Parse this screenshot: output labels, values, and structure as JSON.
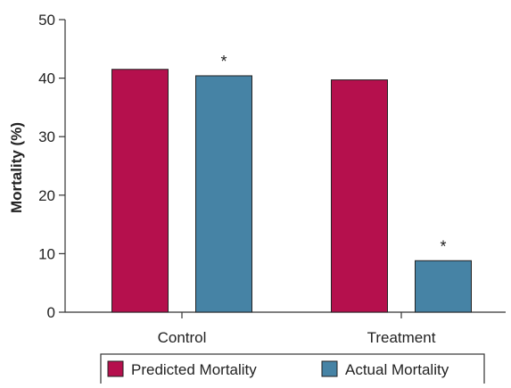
{
  "chart_data": {
    "type": "bar",
    "title": "",
    "xlabel": "",
    "ylabel": "Mortality (%)",
    "ylim": [
      0,
      50
    ],
    "yticks": [
      0,
      10,
      20,
      30,
      40,
      50
    ],
    "grid": false,
    "legend_position": "bottom",
    "categories": [
      "Control",
      "Treatment"
    ],
    "series": [
      {
        "name": "Predicted Mortality",
        "color": "#b5104d",
        "values": [
          41.5,
          39.7
        ]
      },
      {
        "name": "Actual Mortality",
        "color": "#4683a5",
        "values": [
          40.4,
          8.8
        ]
      }
    ],
    "annotations": [
      {
        "category": "Control",
        "series": "Actual Mortality",
        "text": "*"
      },
      {
        "category": "Treatment",
        "series": "Actual Mortality",
        "text": "*"
      }
    ]
  }
}
